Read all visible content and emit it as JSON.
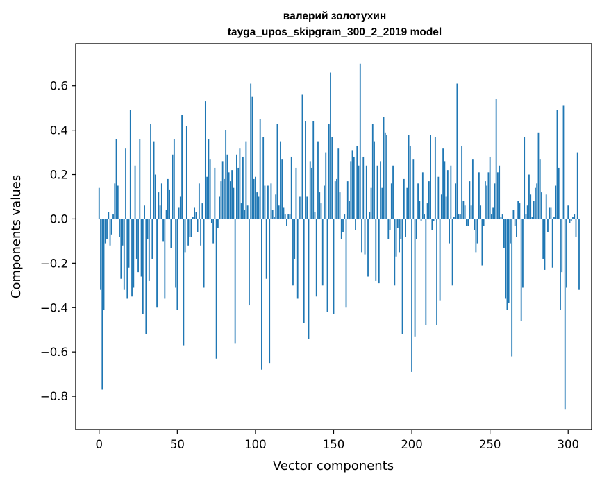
{
  "chart_data": {
    "type": "bar",
    "title_lines": [
      "валерий золотухин",
      "tayga_upos_skipgram_300_2_2019 model"
    ],
    "xlabel": "Vector components",
    "ylabel": "Components values",
    "xlim": [
      -15,
      315
    ],
    "ylim": [
      -0.95,
      0.79
    ],
    "xticks": [
      0,
      50,
      100,
      150,
      200,
      250,
      300
    ],
    "xtick_labels": [
      "0",
      "50",
      "100",
      "150",
      "200",
      "250",
      "300"
    ],
    "yticks": [
      0.6,
      0.4,
      0.2,
      0.0,
      -0.2,
      -0.4,
      -0.6,
      -0.8
    ],
    "ytick_labels": [
      "0.6",
      "0.4",
      "0.2",
      "0.0",
      "−0.2",
      "−0.4",
      "−0.6",
      "−0.8"
    ],
    "bar_color": "#1f77b4",
    "grid": false,
    "values": [
      0.14,
      -0.32,
      -0.77,
      -0.41,
      -0.11,
      -0.09,
      0.03,
      -0.12,
      -0.07,
      0.02,
      0.16,
      0.36,
      0.15,
      -0.08,
      -0.27,
      -0.12,
      -0.32,
      0.32,
      -0.36,
      -0.22,
      0.49,
      -0.35,
      -0.31,
      0.24,
      -0.18,
      -0.24,
      0.36,
      -0.26,
      -0.43,
      0.06,
      -0.52,
      -0.09,
      -0.28,
      0.43,
      -0.18,
      0.35,
      0.2,
      -0.4,
      0.12,
      0.06,
      0.16,
      -0.1,
      -0.36,
      0.04,
      0.18,
      0.13,
      -0.13,
      0.29,
      0.36,
      -0.31,
      -0.41,
      0.05,
      0.1,
      0.47,
      -0.57,
      -0.15,
      0.42,
      -0.12,
      -0.08,
      -0.08,
      0.01,
      0.05,
      0.03,
      -0.06,
      0.16,
      -0.12,
      0.07,
      -0.31,
      0.53,
      0.19,
      0.36,
      0.27,
      -0.02,
      -0.11,
      0.23,
      -0.63,
      -0.04,
      0.1,
      0.17,
      0.26,
      0.18,
      0.4,
      0.29,
      0.21,
      0.17,
      0.22,
      0.14,
      -0.56,
      0.29,
      0.23,
      0.32,
      0.07,
      0.28,
      0.04,
      0.35,
      0.06,
      -0.39,
      0.61,
      0.55,
      0.18,
      0.19,
      0.12,
      0.1,
      0.45,
      -0.68,
      0.37,
      0.15,
      -0.27,
      0.15,
      -0.65,
      0.16,
      0.04,
      0.01,
      0.11,
      0.43,
      0.06,
      0.35,
      0.27,
      0.05,
      0.02,
      -0.03,
      0.02,
      0.02,
      0.28,
      -0.3,
      -0.18,
      0.23,
      -0.36,
      0.1,
      0.1,
      0.56,
      -0.47,
      0.44,
      0.1,
      -0.54,
      0.26,
      0.23,
      0.44,
      0.03,
      -0.35,
      0.35,
      0.12,
      0.07,
      -0.3,
      0.15,
      0.3,
      -0.42,
      0.43,
      0.66,
      0.37,
      -0.43,
      0.17,
      0.18,
      0.32,
      0.12,
      -0.09,
      -0.06,
      0.02,
      -0.4,
      0.17,
      0.08,
      0.26,
      0.31,
      0.28,
      -0.05,
      0.33,
      0.24,
      0.7,
      -0.15,
      0.28,
      -0.16,
      0.24,
      -0.26,
      0.03,
      0.14,
      0.43,
      0.35,
      -0.28,
      0.24,
      -0.29,
      0.26,
      0.14,
      0.46,
      0.39,
      0.38,
      -0.09,
      -0.05,
      0.16,
      0.24,
      -0.3,
      -0.17,
      -0.04,
      -0.15,
      -0.09,
      -0.52,
      0.18,
      -0.08,
      0.14,
      0.38,
      0.33,
      -0.69,
      0.27,
      -0.53,
      -0.09,
      0.16,
      0.08,
      -0.01,
      0.21,
      0.02,
      -0.48,
      0.07,
      0.17,
      0.38,
      -0.05,
      -0.01,
      0.37,
      -0.48,
      0.19,
      -0.37,
      0.11,
      0.32,
      0.26,
      0.1,
      0.22,
      -0.11,
      0.24,
      -0.3,
      0.01,
      0.16,
      0.61,
      0.02,
      0.02,
      0.33,
      0.08,
      0.06,
      -0.03,
      -0.03,
      0.17,
      0.06,
      0.27,
      -0.05,
      -0.15,
      -0.11,
      0.21,
      0.06,
      -0.21,
      -0.03,
      0.17,
      0.15,
      0.21,
      0.28,
      0.02,
      0.05,
      0.16,
      0.54,
      0.21,
      0.24,
      0.01,
      0.02,
      -0.13,
      -0.36,
      -0.41,
      -0.38,
      -0.11,
      -0.62,
      0.04,
      -0.03,
      -0.08,
      0.08,
      0.07,
      -0.46,
      -0.31,
      0.37,
      0.02,
      0.06,
      0.2,
      0.11,
      0.01,
      0.08,
      0.14,
      0.16,
      0.39,
      0.27,
      0.12,
      -0.18,
      -0.23,
      0.11,
      -0.06,
      0.05,
      0.05,
      -0.22,
      0.01,
      0.15,
      0.49,
      0.23,
      -0.41,
      -0.24,
      0.51,
      -0.86,
      -0.31,
      0.06,
      -0.02,
      -0.01,
      0.01,
      0.02,
      -0.08,
      0.3,
      -0.32
    ]
  }
}
